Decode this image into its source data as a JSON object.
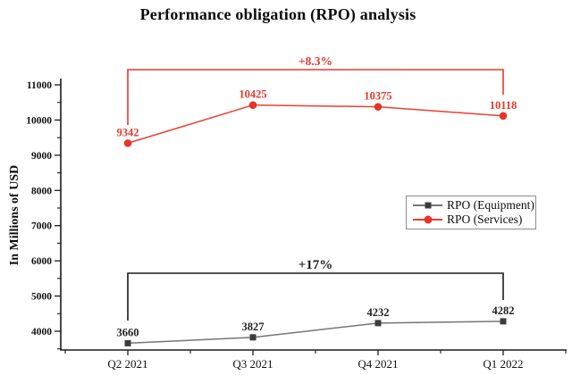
{
  "title": "Performance obligation (RPO) analysis",
  "chart_data": {
    "type": "line",
    "title": "Performance obligation (RPO) analysis",
    "categories": [
      "Q2 2021",
      "Q3 2021",
      "Q4 2021",
      "Q1 2022"
    ],
    "series": [
      {
        "name": "RPO (Equipment)",
        "values": [
          3660,
          3827,
          4232,
          4282
        ],
        "color": "#757575",
        "marker_color": "#3c3c3c",
        "label_color": "#1f1f1f",
        "marker": "square"
      },
      {
        "name": "RPO (Services)",
        "values": [
          9342,
          10425,
          10375,
          10118
        ],
        "color": "#ed3e33",
        "marker_color": "#e93329",
        "label_color": "#e8392e",
        "marker": "circle"
      }
    ],
    "xlabel": "",
    "ylabel": "In Millions of USD",
    "y_ticks": [
      4000,
      5000,
      6000,
      7000,
      8000,
      9000,
      10000,
      11000
    ],
    "y_minor_step": 500,
    "ylim": [
      3470,
      11180
    ],
    "grid": false,
    "legend_position": "middle-right",
    "annotations": [
      {
        "text": "+8.3%",
        "series": "RPO (Services)",
        "color": "#e8392e"
      },
      {
        "text": "+17%",
        "series": "RPO (Equipment)",
        "color": "#1a1a1a"
      }
    ],
    "axis_color": "#1a1a1a"
  }
}
